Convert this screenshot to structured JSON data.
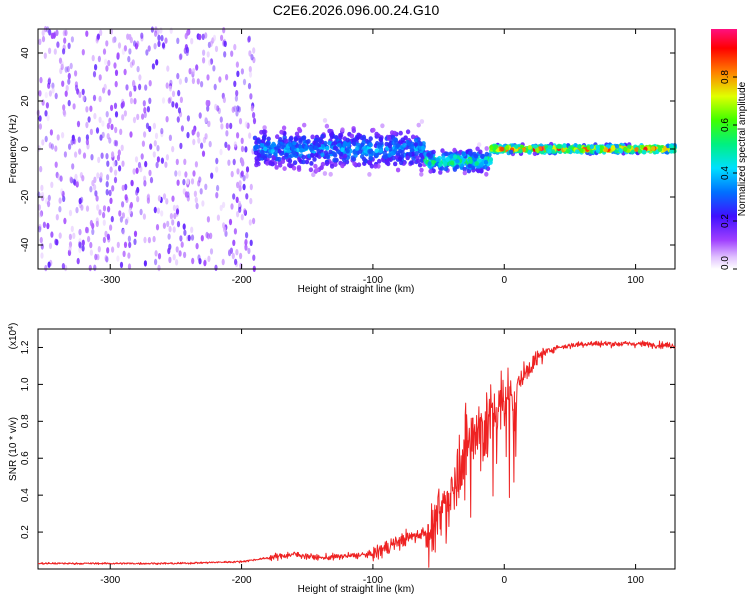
{
  "title": "C2E6.2026.096.00.24.G10",
  "colors": {
    "snr_line": "#ee2222",
    "background": "#ffffff"
  },
  "chart_data": [
    {
      "type": "heatmap",
      "xlabel": "Height of straight line (km)",
      "ylabel": "Frequency (Hz)",
      "xlim": [
        -355,
        130
      ],
      "ylim": [
        -50,
        50
      ],
      "xticks": [
        "-300",
        "-200",
        "-100",
        "0",
        "100"
      ],
      "yticks": [
        "-40",
        "-20",
        "0",
        "20",
        "40"
      ],
      "colorbar": {
        "label": "Normalized spectral amplitude",
        "range": [
          0,
          1
        ],
        "ticks": [
          "0.0",
          "0.2",
          "0.4",
          "0.6",
          "0.8"
        ],
        "colormap": "rainbow (white-purple-blue-cyan-green-yellow-red-magenta)"
      },
      "regions": [
        {
          "x_range": [
            -355,
            -190
          ],
          "description": "broadband noise across all frequencies",
          "amplitude": 0.12
        },
        {
          "x_range": [
            -190,
            -60
          ],
          "freq_center": 0,
          "freq_spread": 8,
          "amplitude": 0.4
        },
        {
          "x_range": [
            -60,
            -10
          ],
          "freq_center": -5,
          "freq_spread": 4,
          "amplitude": 0.6
        },
        {
          "x_range": [
            -10,
            130
          ],
          "freq_center": 0,
          "freq_spread": 1.5,
          "amplitude": 0.95
        }
      ]
    },
    {
      "type": "line",
      "xlabel": "Height of straight line (km)",
      "ylabel": "SNR (10 * v/v)",
      "y_scale_label": "(x10^4)",
      "xlim": [
        -355,
        130
      ],
      "ylim": [
        0,
        1.3
      ],
      "xticks": [
        "-300",
        "-200",
        "-100",
        "0",
        "100"
      ],
      "yticks": [
        "0.2",
        "0.4",
        "0.6",
        "0.8",
        "1.0",
        "1.2"
      ],
      "series": [
        {
          "color": "#ee2222",
          "x": [
            -355,
            -300,
            -250,
            -200,
            -180,
            -160,
            -140,
            -120,
            -100,
            -80,
            -60,
            -50,
            -40,
            -30,
            -20,
            -10,
            0,
            10,
            20,
            30,
            40,
            60,
            80,
            100,
            130
          ],
          "y": [
            0.03,
            0.03,
            0.03,
            0.04,
            0.06,
            0.08,
            0.06,
            0.07,
            0.08,
            0.15,
            0.2,
            0.3,
            0.45,
            0.7,
            0.8,
            0.85,
            0.92,
            1.0,
            1.1,
            1.17,
            1.2,
            1.22,
            1.22,
            1.22,
            1.21
          ]
        }
      ]
    }
  ]
}
